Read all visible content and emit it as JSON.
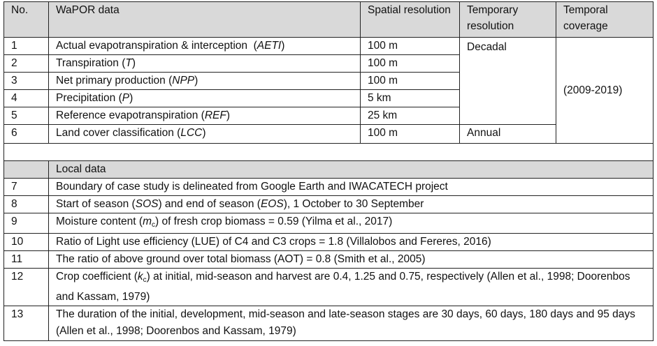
{
  "header": {
    "no": "No.",
    "data": "WaPOR data",
    "spatial": "Spatial resolution",
    "temporary": "Temporary resolution",
    "coverage": "Temporal coverage"
  },
  "wapor_rows": [
    {
      "no": "1",
      "label": "Actual evapotranspiration & interception",
      "abbr": "AETI",
      "spatial": "100 m"
    },
    {
      "no": "2",
      "label": "Transpiration",
      "abbr": "T",
      "spatial": "100 m"
    },
    {
      "no": "3",
      "label": "Net primary production",
      "abbr": "NPP",
      "spatial": "100 m"
    },
    {
      "no": "4",
      "label": "Precipitation",
      "abbr": "P",
      "spatial": "5 km"
    },
    {
      "no": "5",
      "label": "Reference evapotranspiration",
      "abbr": "REF",
      "spatial": "25 km"
    },
    {
      "no": "6",
      "label": "Land cover classification",
      "abbr": "LCC",
      "spatial": "100 m"
    }
  ],
  "temporal": {
    "decadal": "Decadal",
    "annual": "Annual",
    "coverage": "(2009-2019)"
  },
  "local_header": "Local data",
  "local_rows": [
    {
      "no": "7",
      "text": "Boundary of case study is delineated from Google Earth and IWACATECH project"
    },
    {
      "no": "8",
      "pre": "Start of season (",
      "i1": "SOS",
      "mid": ") and end of season (",
      "i2": "EOS",
      "post": "), 1 October to 30 September"
    },
    {
      "no": "9",
      "pre": "Moisture content (",
      "sym": "m",
      "sub": "c",
      "post": ") of fresh crop biomass = 0.59 (Yilma et al., 2017)"
    },
    {
      "no": "10",
      "text": "Ratio of Light use efficiency (LUE) of C4 and C3 crops = 1.8 (Villalobos and Fereres, 2016)"
    },
    {
      "no": "11",
      "text": "The ratio of above ground over total biomass (AOT) = 0.8 (Smith et al., 2005)"
    },
    {
      "no": "12",
      "pre": "Crop coefficient (",
      "sym": "k",
      "sub": "c",
      "post": ") at initial, mid-season and harvest are 0.4, 1.25 and 0.75, respectively (Allen et al., 1998; Doorenbos and Kassam, 1979)"
    },
    {
      "no": "13",
      "text": "The duration of the initial, development, mid-season and late-season stages are 30 days, 60 days, 180 days and 95 days (Allen et al., 1998; Doorenbos and Kassam, 1979)"
    }
  ]
}
